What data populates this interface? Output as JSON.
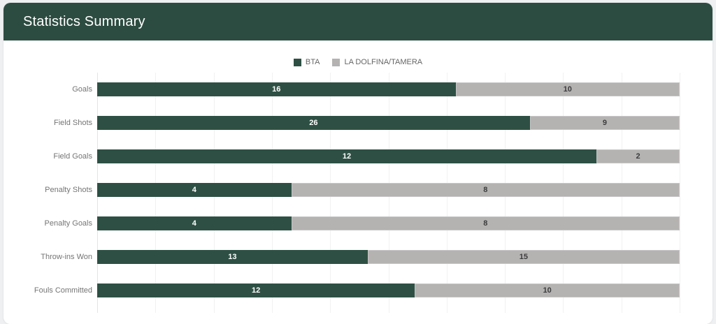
{
  "header": {
    "title": "Statistics Summary"
  },
  "legend": {
    "items": [
      {
        "label": "BTA",
        "color": "#2e5044"
      },
      {
        "label": "LA DOLFINA/TAMERA",
        "color": "#b5b2b2"
      }
    ]
  },
  "chart_data": {
    "type": "bar",
    "orientation": "horizontal",
    "stacking": "percent",
    "title": "Statistics Summary",
    "categories": [
      "Goals",
      "Field Shots",
      "Field Goals",
      "Penalty Shots",
      "Penalty Goals",
      "Throw-ins Won",
      "Fouls Committed"
    ],
    "series": [
      {
        "name": "BTA",
        "color": "#2e5044",
        "values": [
          16,
          26,
          12,
          4,
          4,
          13,
          12
        ]
      },
      {
        "name": "LA DOLFINA/TAMERA",
        "color": "#b5b2b2",
        "values": [
          10,
          9,
          2,
          8,
          8,
          15,
          10
        ]
      }
    ],
    "value_labels": "inside-center",
    "xlabel": "",
    "ylabel": "",
    "grid": true,
    "grid_divisions": 10,
    "legend_position": "top",
    "colors": {
      "header_background": "#2d4c41",
      "card_background": "#ffffff",
      "page_background": "#eef0f2",
      "category_label": "#757575",
      "value_on_green": "#ffffff",
      "value_on_gray": "#3c3c3c"
    }
  }
}
